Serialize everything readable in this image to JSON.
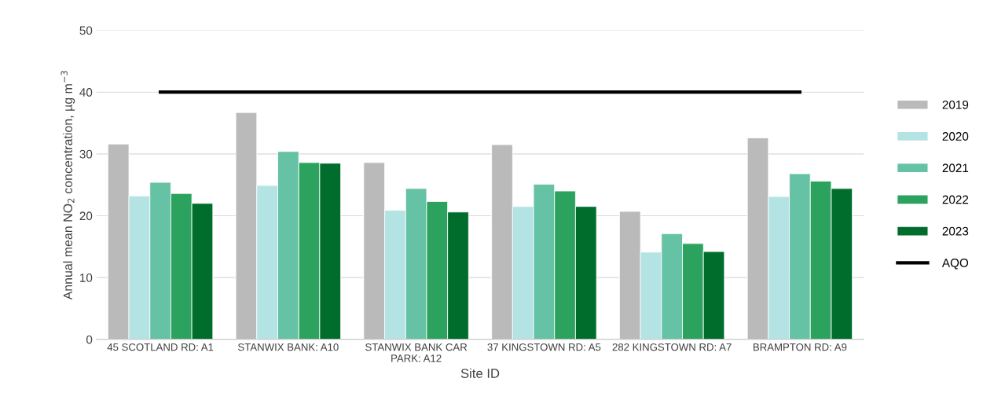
{
  "chart_data": {
    "type": "bar",
    "xlabel": "Site ID",
    "ylabel": "Annual mean NO$_{2}$ concentration, µg m$^{−3}$",
    "categories": [
      "45 SCOTLAND RD: A1",
      "STANWIX BANK: A10",
      "STANWIX BANK CAR PARK: A12",
      "37 KINGSTOWN RD: A5",
      "282 KINGSTOWN RD: A7",
      "BRAMPTON RD: A9"
    ],
    "series": [
      {
        "name": "2019",
        "color": "#bababa",
        "values": [
          31.6,
          36.7,
          28.6,
          31.5,
          20.7,
          32.6
        ]
      },
      {
        "name": "2020",
        "color": "#b3e3e3",
        "values": [
          23.2,
          24.9,
          20.9,
          21.5,
          14.1,
          23.1
        ]
      },
      {
        "name": "2021",
        "color": "#66c2a4",
        "values": [
          25.4,
          30.4,
          24.4,
          25.1,
          17.1,
          26.8
        ]
      },
      {
        "name": "2022",
        "color": "#2ca25f",
        "values": [
          23.6,
          28.6,
          22.3,
          24.0,
          15.5,
          25.6
        ]
      },
      {
        "name": "2023",
        "color": "#006d2c",
        "values": [
          22.0,
          28.5,
          20.6,
          21.5,
          14.2,
          24.4
        ]
      },
      {
        "name": "AQO",
        "type": "line",
        "color": "#000000",
        "values": [
          40,
          40,
          40,
          40,
          40,
          40
        ]
      }
    ],
    "ylim": [
      0,
      50
    ],
    "yticks": [
      0,
      10,
      20,
      30,
      40,
      50
    ],
    "grid": "y",
    "legend": "right"
  }
}
